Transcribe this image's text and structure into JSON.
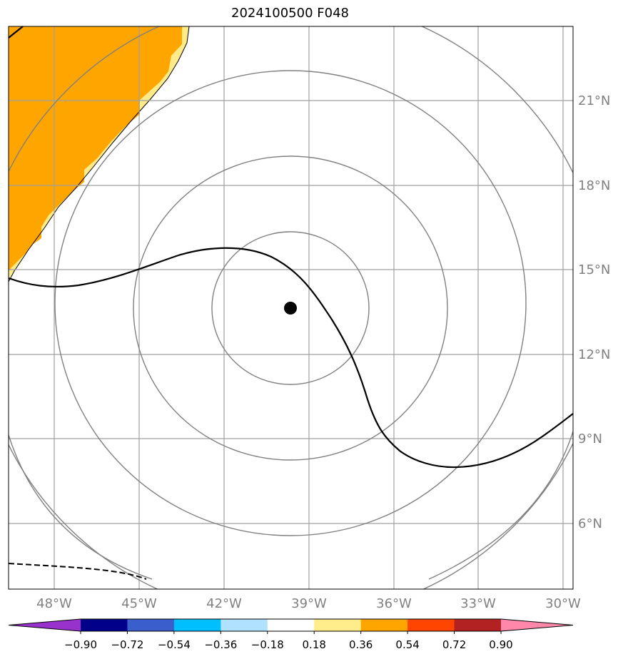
{
  "title": "2024100500 F048",
  "map": {
    "lon_ticks": [
      "48°W",
      "45°W",
      "42°W",
      "39°W",
      "36°W",
      "33°W",
      "30°W"
    ],
    "lat_ticks": [
      "21°N",
      "18°N",
      "15°N",
      "12°N",
      "9°N",
      "6°N"
    ],
    "grid_color": "#a0a0a0",
    "ring_color": "#808080",
    "land_fill": "#ffa500",
    "land_edge": "#ffeb8a",
    "center_marker": {
      "label": "storm-center",
      "lon": -39.7,
      "lat": 13.6
    }
  },
  "colorbar": {
    "ticks": [
      "−0.90",
      "−0.72",
      "−0.54",
      "−0.36",
      "−0.18",
      "0.18",
      "0.36",
      "0.54",
      "0.72",
      "0.90"
    ],
    "colors": [
      "#9932cc",
      "#00008b",
      "#3a5fcd",
      "#00bfff",
      "#b0e2ff",
      "#ffffff",
      "#ffec8b",
      "#ffa500",
      "#ff4500",
      "#b22222",
      "#ff88aa"
    ]
  }
}
